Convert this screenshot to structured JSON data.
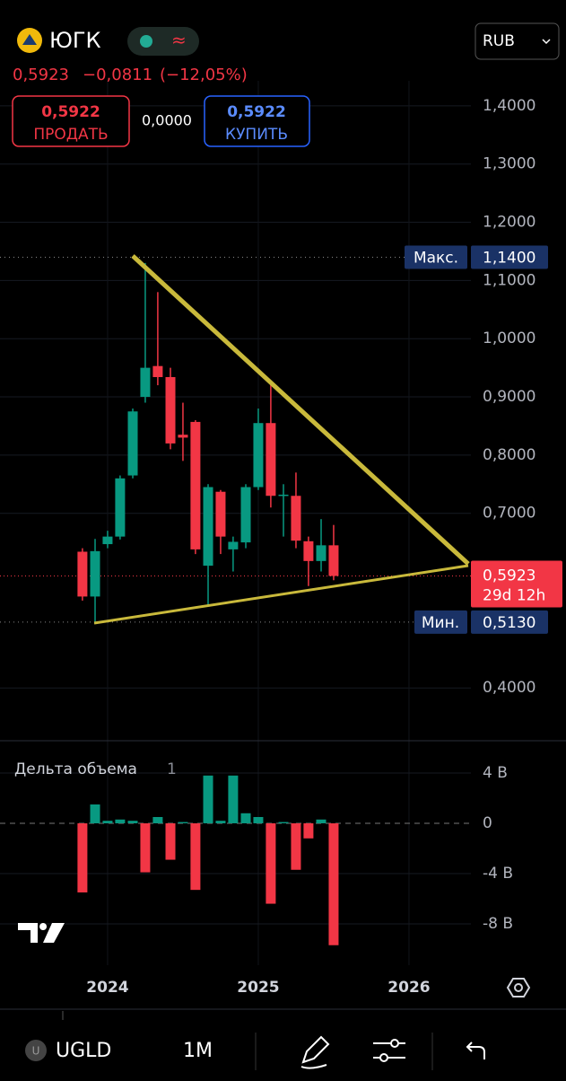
{
  "header": {
    "ticker": "ЮГК",
    "status": "≈",
    "currency": "RUB",
    "price": "0,5923",
    "change": "−0,0811",
    "change_pct": "(−12,05%)",
    "sell_price": "0,5922",
    "sell_label": "ПРОДАТЬ",
    "spread": "0,0000",
    "buy_price": "0,5922",
    "buy_label": "КУПИТЬ"
  },
  "chart_data": {
    "type": "candlestick",
    "x": [
      2023.833,
      2023.917,
      2024,
      2024.083,
      2024.167,
      2024.25,
      2024.333,
      2024.417,
      2024.5,
      2024.583,
      2024.667,
      2024.75,
      2024.833,
      2024.917,
      2025,
      2025.083,
      2025.167,
      2025.25,
      2025.333,
      2025.417,
      2025.5
    ],
    "open": [
      0.634,
      0.557,
      0.647,
      0.66,
      0.765,
      0.9,
      0.953,
      0.934,
      0.835,
      0.857,
      0.61,
      0.737,
      0.638,
      0.65,
      0.745,
      0.855,
      0.73,
      0.73,
      0.652,
      0.618,
      0.645
    ],
    "high": [
      0.64,
      0.656,
      0.67,
      0.765,
      0.88,
      1.13,
      1.08,
      0.95,
      0.89,
      0.86,
      0.75,
      0.74,
      0.66,
      0.75,
      0.88,
      0.925,
      0.75,
      0.77,
      0.66,
      0.69,
      0.68
    ],
    "low": [
      0.55,
      0.513,
      0.64,
      0.655,
      0.76,
      0.89,
      0.92,
      0.81,
      0.79,
      0.63,
      0.54,
      0.63,
      0.6,
      0.64,
      0.74,
      0.71,
      0.66,
      0.64,
      0.575,
      0.6,
      0.585
    ],
    "close": [
      0.557,
      0.635,
      0.66,
      0.76,
      0.875,
      0.95,
      0.934,
      0.82,
      0.83,
      0.638,
      0.745,
      0.66,
      0.651,
      0.745,
      0.855,
      0.73,
      0.732,
      0.653,
      0.618,
      0.645,
      0.5923
    ],
    "up_color": "#089981",
    "down_color": "#f23645",
    "xlim": [
      2023.286,
      2026.411
    ],
    "xticks": [
      2024,
      2025,
      2026
    ],
    "ylim": [
      0.317,
      1.443
    ],
    "yticks": [
      {
        "value": 0.4,
        "label": "0,4000"
      },
      {
        "value": 0.7,
        "label": "0,7000"
      },
      {
        "value": 0.8,
        "label": "0,8000"
      },
      {
        "value": 0.9,
        "label": "0,9000"
      },
      {
        "value": 1.0,
        "label": "1,0000"
      },
      {
        "value": 1.1,
        "label": "1,1000"
      },
      {
        "value": 1.2,
        "label": "1,2000"
      },
      {
        "value": 1.3,
        "label": "1,3000"
      },
      {
        "value": 1.4,
        "label": "1,4000"
      }
    ],
    "grid": true,
    "levels": [
      {
        "label": "Макс.",
        "value": 1.14,
        "value_label": "1,1400"
      },
      {
        "label": "Мин.",
        "value": 0.513,
        "value_label": "0,5130"
      }
    ],
    "last_price": {
      "value": 0.5923,
      "value_label": "0,5923",
      "countdown": "29d 12h"
    },
    "volume_delta": {
      "title": "Дельта объема",
      "param": "1",
      "values": [
        -5.5,
        1.5,
        0.2,
        0.3,
        0.2,
        -3.9,
        0.5,
        -2.9,
        0.1,
        -5.3,
        3.8,
        0.2,
        3.8,
        0.8,
        0.5,
        -6.4,
        0.1,
        -3.7,
        -1.2,
        0.3,
        -9.7
      ],
      "ylim": [
        -11.29,
        5.5
      ],
      "yticks": [
        {
          "value": 4,
          "label": "4 B"
        },
        0,
        {
          "value": -4,
          "label": "-4 B"
        },
        {
          "value": -8,
          "label": "-8 B"
        }
      ]
    }
  },
  "footer": {
    "symbol": "UGLD",
    "interval": "1M"
  }
}
